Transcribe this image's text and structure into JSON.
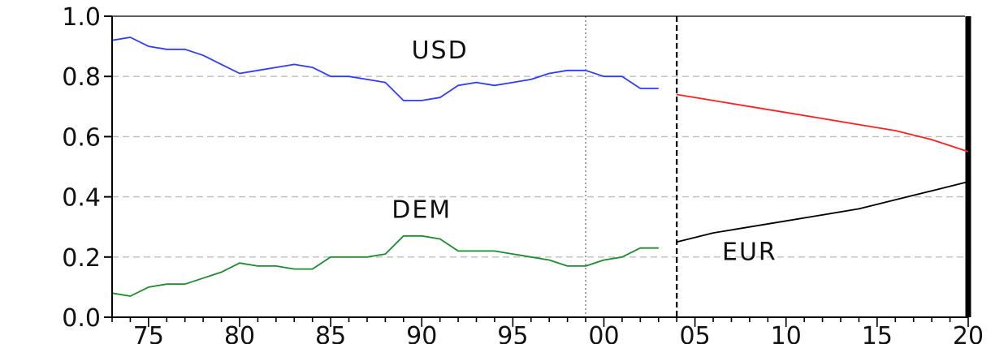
{
  "chart_data": {
    "type": "line",
    "title": "",
    "xlabel": "",
    "ylabel": "",
    "xlim": [
      1973,
      2020
    ],
    "ylim": [
      0.0,
      1.0
    ],
    "grid": "horizontal dashed at 0.2, 0.4, 0.6, 0.8; vertical dotted at 1999",
    "x_tick_labels": [
      {
        "x": 1975,
        "label": "75"
      },
      {
        "x": 1980,
        "label": "80"
      },
      {
        "x": 1985,
        "label": "85"
      },
      {
        "x": 1990,
        "label": "90"
      },
      {
        "x": 1995,
        "label": "95"
      },
      {
        "x": 2000,
        "label": "00"
      },
      {
        "x": 2005,
        "label": "05"
      },
      {
        "x": 2010,
        "label": "10"
      },
      {
        "x": 2015,
        "label": "15"
      },
      {
        "x": 2020,
        "label": "20"
      }
    ],
    "y_tick_labels": [
      {
        "y": 0.0,
        "label": "0.0"
      },
      {
        "y": 0.2,
        "label": "0.2"
      },
      {
        "y": 0.4,
        "label": "0.4"
      },
      {
        "y": 0.6,
        "label": "0.6"
      },
      {
        "y": 0.8,
        "label": "0.8"
      },
      {
        "y": 1.0,
        "label": "1.0"
      }
    ],
    "vertical_markers": [
      {
        "x": 1999,
        "style": "dotted",
        "color": "#999999"
      },
      {
        "x": 2004,
        "style": "dashed",
        "color": "#000000"
      },
      {
        "x": 2020,
        "style": "solid-thick",
        "color": "#000000"
      }
    ],
    "series": [
      {
        "name": "USD",
        "color": "#2f3cff",
        "x": [
          1973,
          1974,
          1975,
          1976,
          1977,
          1978,
          1979,
          1980,
          1981,
          1982,
          1983,
          1984,
          1985,
          1986,
          1987,
          1988,
          1989,
          1990,
          1991,
          1992,
          1993,
          1994,
          1995,
          1996,
          1997,
          1998,
          1999,
          2000,
          2001,
          2002,
          2003
        ],
        "values": [
          0.92,
          0.93,
          0.9,
          0.89,
          0.89,
          0.87,
          0.84,
          0.81,
          0.82,
          0.83,
          0.84,
          0.83,
          0.8,
          0.8,
          0.79,
          0.78,
          0.72,
          0.72,
          0.73,
          0.77,
          0.78,
          0.77,
          0.78,
          0.79,
          0.81,
          0.82,
          0.82,
          0.8,
          0.8,
          0.76,
          0.76
        ]
      },
      {
        "name": "DEM",
        "color": "#1f8a2f",
        "x": [
          1973,
          1974,
          1975,
          1976,
          1977,
          1978,
          1979,
          1980,
          1981,
          1982,
          1983,
          1984,
          1985,
          1986,
          1987,
          1988,
          1989,
          1990,
          1991,
          1992,
          1993,
          1994,
          1995,
          1996,
          1997,
          1998,
          1999,
          2000,
          2001,
          2002,
          2003
        ],
        "values": [
          0.08,
          0.07,
          0.1,
          0.11,
          0.11,
          0.13,
          0.15,
          0.18,
          0.17,
          0.17,
          0.16,
          0.16,
          0.2,
          0.2,
          0.2,
          0.21,
          0.27,
          0.27,
          0.26,
          0.22,
          0.22,
          0.22,
          0.21,
          0.2,
          0.19,
          0.17,
          0.17,
          0.19,
          0.2,
          0.23,
          0.23
        ]
      },
      {
        "name": "",
        "color": "#ff2020",
        "x": [
          2004,
          2006,
          2008,
          2010,
          2012,
          2014,
          2016,
          2018,
          2020
        ],
        "values": [
          0.74,
          0.72,
          0.7,
          0.68,
          0.66,
          0.64,
          0.62,
          0.59,
          0.55
        ]
      },
      {
        "name": "EUR",
        "color": "#000000",
        "x": [
          2004,
          2006,
          2008,
          2010,
          2012,
          2014,
          2016,
          2018,
          2020
        ],
        "values": [
          0.25,
          0.28,
          0.3,
          0.32,
          0.34,
          0.36,
          0.39,
          0.42,
          0.45
        ]
      }
    ],
    "annotations": [
      {
        "text": "USD",
        "x": 1991,
        "y": 0.89
      },
      {
        "text": "DEM",
        "x": 1990,
        "y": 0.36
      },
      {
        "text": "EUR",
        "x": 2008,
        "y": 0.22
      }
    ]
  }
}
